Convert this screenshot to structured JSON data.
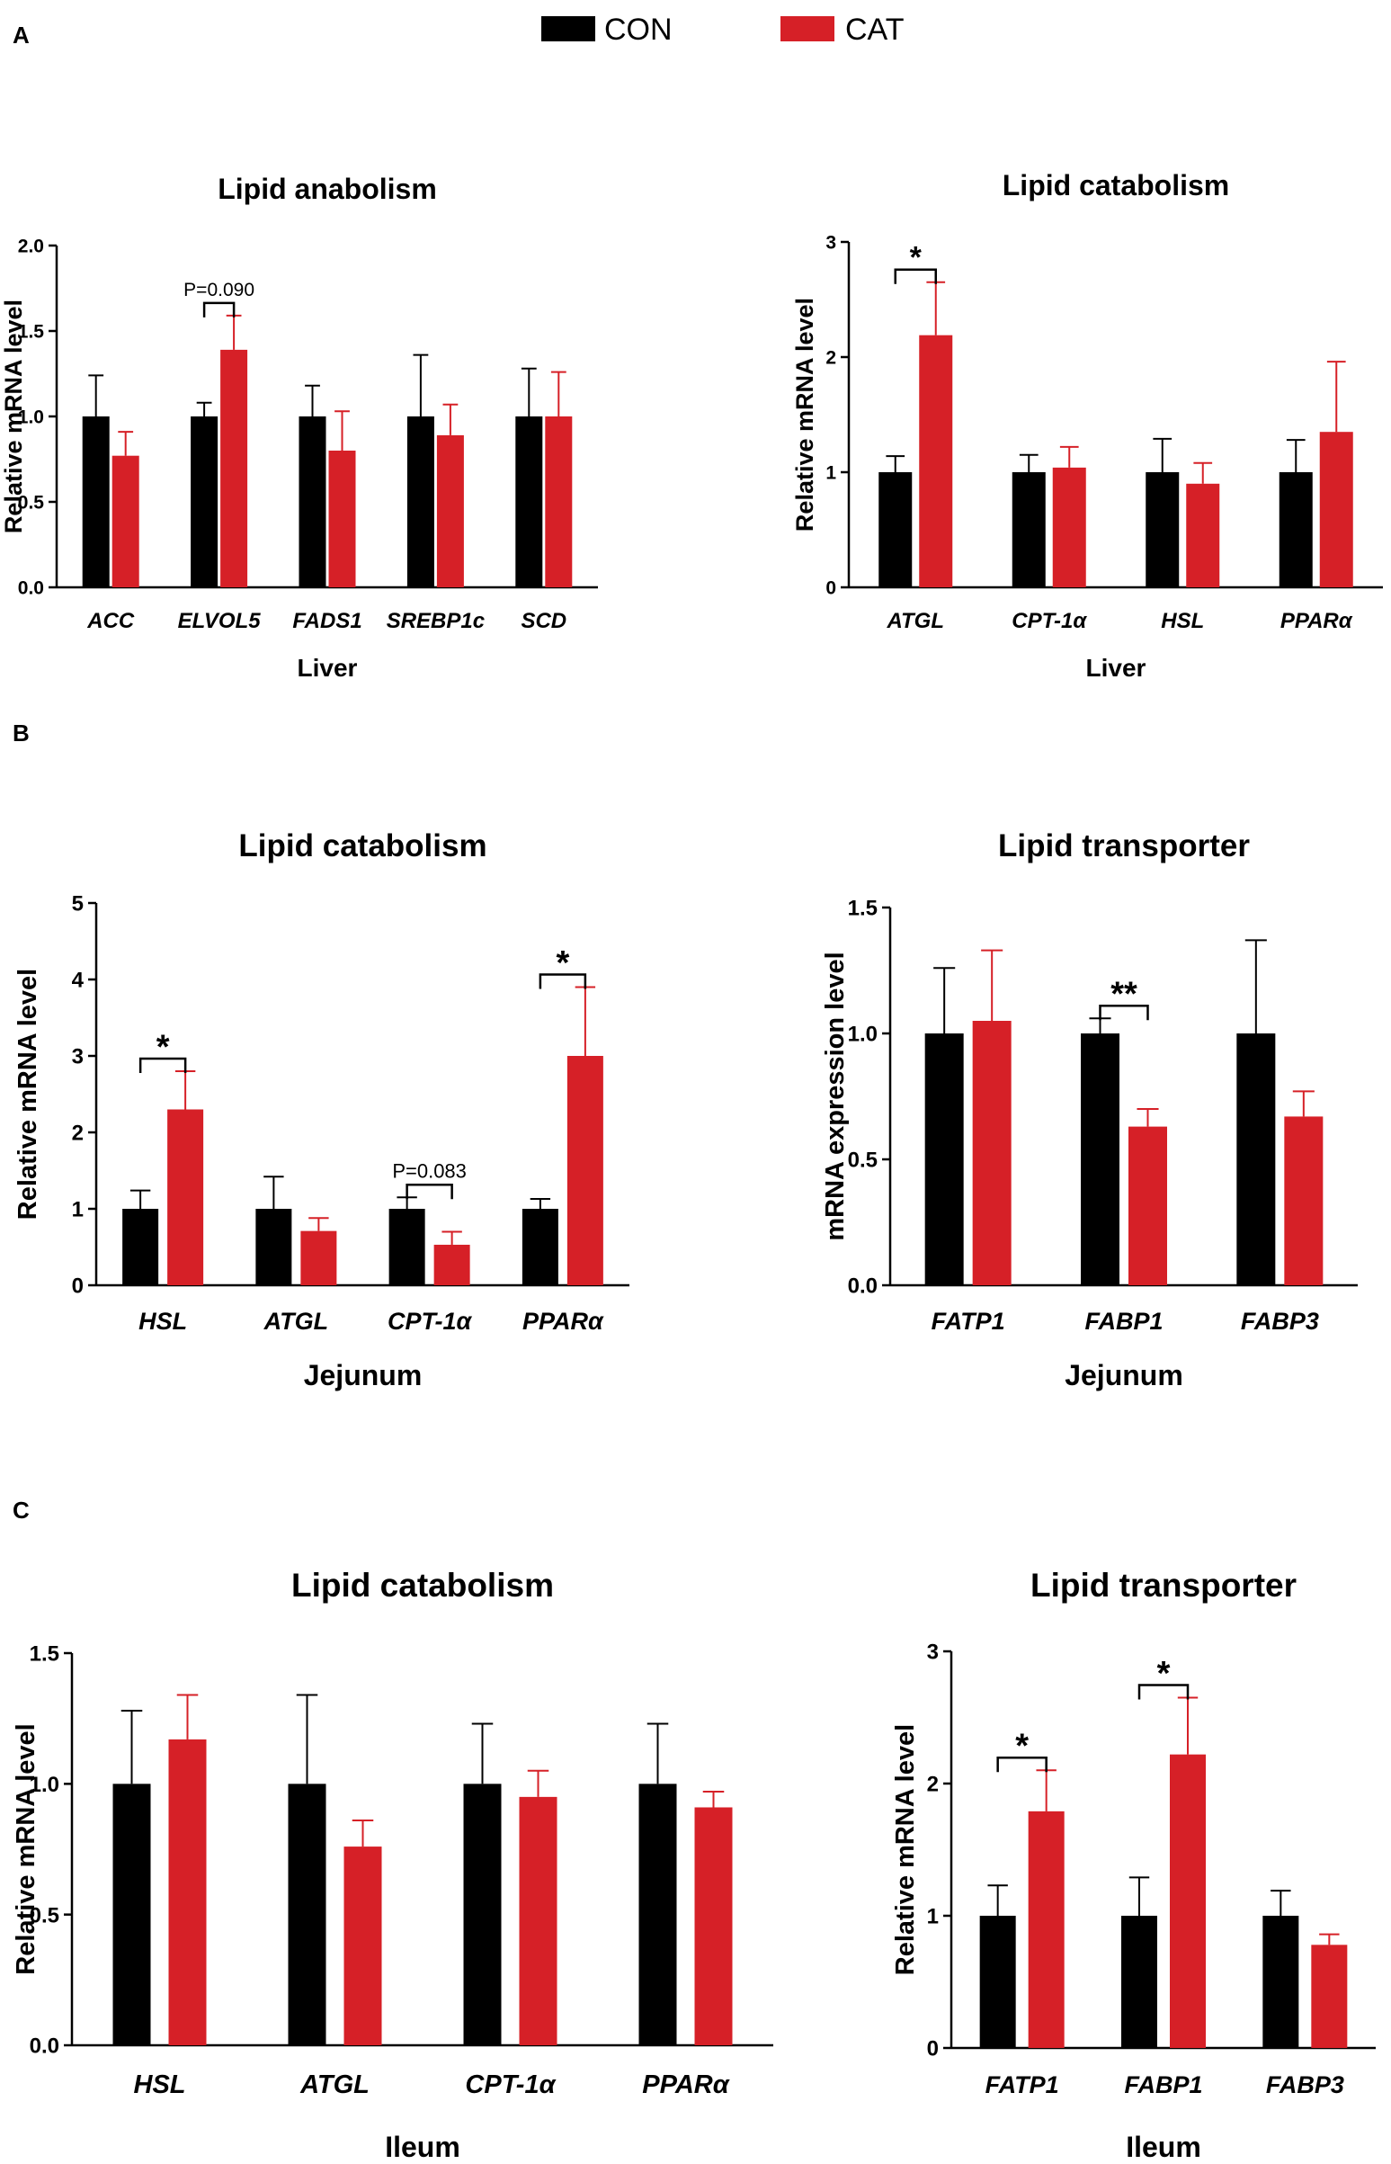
{
  "legend": {
    "items": [
      {
        "label": "CON",
        "color": "#000000"
      },
      {
        "label": "CAT",
        "color": "#d62027"
      }
    ]
  },
  "panels": [
    {
      "letter": "A"
    },
    {
      "letter": "B"
    },
    {
      "letter": "C"
    }
  ],
  "chart_data": [
    {
      "type": "bar",
      "title": "Lipid anabolism",
      "xlabel": "Liver",
      "ylabel": "Relative mRNA level",
      "categories": [
        "ACC",
        "ELVOL5",
        "FADS1",
        "SREBP1c",
        "SCD"
      ],
      "series": [
        {
          "name": "CON",
          "values": [
            1.0,
            1.0,
            1.0,
            1.0,
            1.0
          ],
          "errors": [
            0.24,
            0.08,
            0.18,
            0.36,
            0.28
          ]
        },
        {
          "name": "CAT",
          "values": [
            0.77,
            1.39,
            0.8,
            0.89,
            1.0
          ],
          "errors": [
            0.14,
            0.2,
            0.23,
            0.18,
            0.26
          ]
        }
      ],
      "yticks": [
        "0.0",
        "0.5",
        "1.0",
        "1.5",
        "2.0"
      ],
      "ylim": [
        0,
        2
      ],
      "annotations": [
        {
          "index": 1,
          "text": "P=0.090"
        }
      ]
    },
    {
      "type": "bar",
      "title": "Lipid catabolism",
      "xlabel": "Liver",
      "ylabel": "Relative mRNA level",
      "categories": [
        "ATGL",
        "CPT-1α",
        "HSL",
        "PPARα"
      ],
      "series": [
        {
          "name": "CON",
          "values": [
            1.0,
            1.0,
            1.0,
            1.0
          ],
          "errors": [
            0.14,
            0.15,
            0.29,
            0.28
          ]
        },
        {
          "name": "CAT",
          "values": [
            2.19,
            1.04,
            0.9,
            1.35
          ],
          "errors": [
            0.46,
            0.18,
            0.18,
            0.61
          ]
        }
      ],
      "yticks": [
        "0",
        "1",
        "2",
        "3"
      ],
      "ylim": [
        0,
        3
      ],
      "annotations": [
        {
          "index": 0,
          "text": "*"
        }
      ]
    },
    {
      "type": "bar",
      "title": "Lipid catabolism",
      "xlabel": "Jejunum",
      "ylabel": "Relative mRNA level",
      "categories": [
        "HSL",
        "ATGL",
        "CPT-1α",
        "PPARα"
      ],
      "series": [
        {
          "name": "CON",
          "values": [
            1.0,
            1.0,
            1.0,
            1.0
          ],
          "errors": [
            0.24,
            0.42,
            0.15,
            0.13
          ]
        },
        {
          "name": "CAT",
          "values": [
            2.3,
            0.71,
            0.53,
            3.0
          ],
          "errors": [
            0.5,
            0.17,
            0.17,
            0.9
          ]
        }
      ],
      "yticks": [
        "0",
        "1",
        "2",
        "3",
        "4",
        "5"
      ],
      "ylim": [
        0,
        5
      ],
      "annotations": [
        {
          "index": 0,
          "text": "*"
        },
        {
          "index": 2,
          "text": "P=0.083"
        },
        {
          "index": 3,
          "text": "*"
        }
      ]
    },
    {
      "type": "bar",
      "title": "Lipid transporter",
      "xlabel": "Jejunum",
      "ylabel": "mRNA expression level",
      "categories": [
        "FATP1",
        "FABP1",
        "FABP3"
      ],
      "series": [
        {
          "name": "CON",
          "values": [
            1.0,
            1.0,
            1.0
          ],
          "errors": [
            0.26,
            0.06,
            0.37
          ]
        },
        {
          "name": "CAT",
          "values": [
            1.05,
            0.63,
            0.67
          ],
          "errors": [
            0.28,
            0.07,
            0.1
          ]
        }
      ],
      "yticks": [
        "0.0",
        "0.5",
        "1.0",
        "1.5"
      ],
      "ylim": [
        0,
        1.5
      ],
      "annotations": [
        {
          "index": 1,
          "text": "**"
        }
      ]
    },
    {
      "type": "bar",
      "title": "Lipid catabolism",
      "xlabel": "Ileum",
      "ylabel": "Relative mRNA level",
      "categories": [
        "HSL",
        "ATGL",
        "CPT-1α",
        "PPARα"
      ],
      "series": [
        {
          "name": "CON",
          "values": [
            1.0,
            1.0,
            1.0,
            1.0
          ],
          "errors": [
            0.28,
            0.34,
            0.23,
            0.23
          ]
        },
        {
          "name": "CAT",
          "values": [
            1.17,
            0.76,
            0.95,
            0.91
          ],
          "errors": [
            0.17,
            0.1,
            0.1,
            0.06
          ]
        }
      ],
      "yticks": [
        "0.0",
        "0.5",
        "1.0",
        "1.5"
      ],
      "ylim": [
        0,
        1.5
      ],
      "annotations": []
    },
    {
      "type": "bar",
      "title": "Lipid transporter",
      "xlabel": "Ileum",
      "ylabel": "Relative mRNA level",
      "categories": [
        "FATP1",
        "FABP1",
        "FABP3"
      ],
      "series": [
        {
          "name": "CON",
          "values": [
            1.0,
            1.0,
            1.0
          ],
          "errors": [
            0.23,
            0.29,
            0.19
          ]
        },
        {
          "name": "CAT",
          "values": [
            1.79,
            2.22,
            0.78
          ],
          "errors": [
            0.31,
            0.43,
            0.08
          ]
        }
      ],
      "yticks": [
        "0",
        "1",
        "2",
        "3"
      ],
      "ylim": [
        0,
        3
      ],
      "annotations": [
        {
          "index": 0,
          "text": "*"
        },
        {
          "index": 1,
          "text": "*"
        }
      ]
    }
  ]
}
